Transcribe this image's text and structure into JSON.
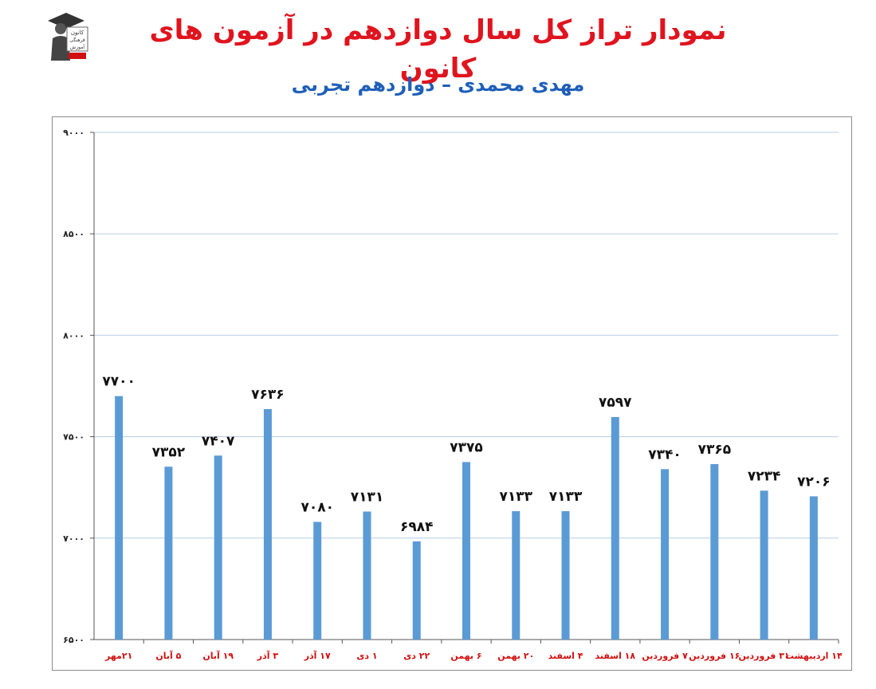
{
  "header": {
    "title": "نمودار تراز کل سال دوازدهم در آزمون های کانون",
    "subtitle": "مهدی محمدی – دوازدهم تجربی"
  },
  "logo": {
    "icon": "kanoon-graduate-logo",
    "text_lines": [
      "کانون",
      "فرهنگی",
      "آموزش"
    ]
  },
  "colors": {
    "title": "#e0141e",
    "subtitle": "#1f5fb8",
    "bar": "#5b9bd5",
    "x_tick": "#d01010",
    "grid": "#b9cde5"
  },
  "chart_data": {
    "type": "bar",
    "title": "",
    "xlabel": "",
    "ylabel": "",
    "ylim": [
      6500,
      9000
    ],
    "y_ticks": [
      6500,
      7000,
      7500,
      8000,
      8500,
      9000
    ],
    "y_tick_labels": [
      "۶۵۰۰",
      "۷۰۰۰",
      "۷۵۰۰",
      "۸۰۰۰",
      "۸۵۰۰",
      "۹۰۰۰"
    ],
    "grid": true,
    "legend": "none",
    "categories": [
      "۲۱مهر",
      "۵ آبان",
      "۱۹ آبان",
      "۳ آذر",
      "۱۷ آذر",
      "۱ دی",
      "۲۲ دی",
      "۶ بهمن",
      "۲۰ بهمن",
      "۴ اسفند",
      "۱۸ اسفند",
      "۷ فروردین",
      "۱۶ فروردین",
      "۳۱ فروردین",
      "۱۴ اردیبهشت"
    ],
    "values": [
      7700,
      7352,
      7407,
      7636,
      7080,
      7131,
      6984,
      7375,
      7133,
      7133,
      7597,
      7340,
      7365,
      7234,
      7206
    ],
    "value_labels": [
      "۷۷۰۰",
      "۷۳۵۲",
      "۷۴۰۷",
      "۷۶۳۶",
      "۷۰۸۰",
      "۷۱۳۱",
      "۶۹۸۴",
      "۷۳۷۵",
      "۷۱۳۳",
      "۷۱۳۳",
      "۷۵۹۷",
      "۷۳۴۰",
      "۷۳۶۵",
      "۷۲۳۴",
      "۷۲۰۶"
    ]
  }
}
